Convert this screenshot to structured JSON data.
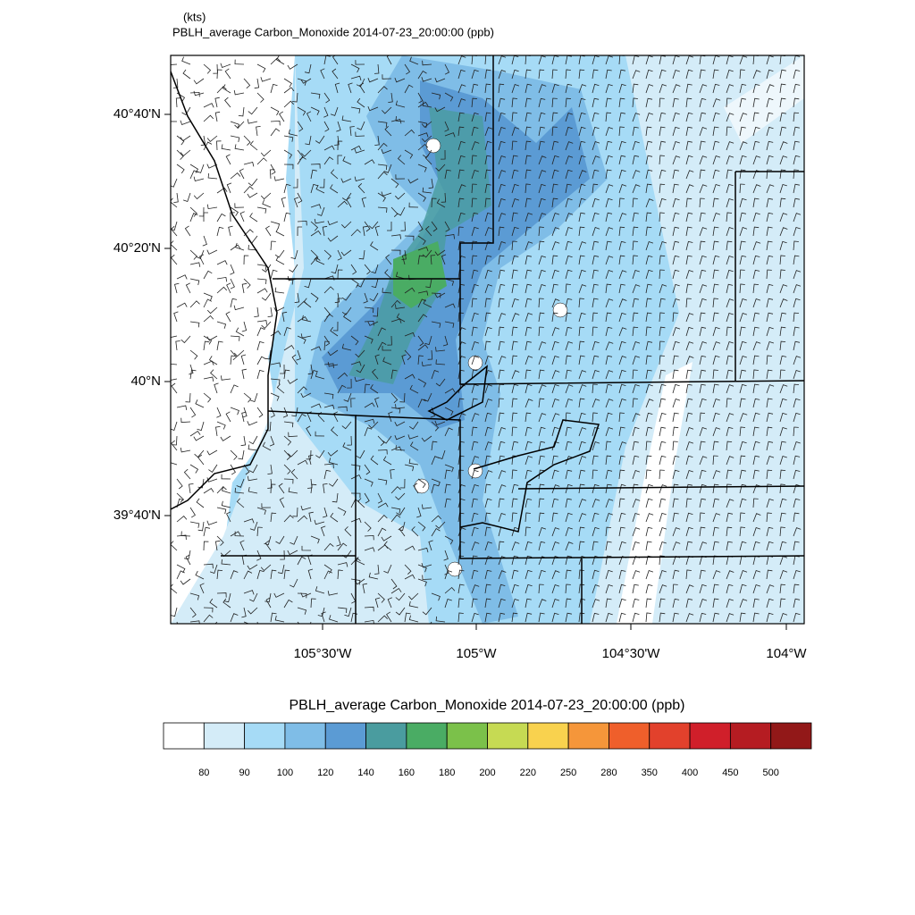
{
  "header": {
    "units": "(kts)",
    "title": "PBLH_average Carbon_Monoxide   2014-07-23_20:00:00   (ppb)"
  },
  "map": {
    "lat_ticks": [
      "40°40'N",
      "40°20'N",
      "40°N",
      "39°40'N"
    ],
    "lon_ticks": [
      "105°30'W",
      "105°W",
      "104°30'W",
      "104°W"
    ]
  },
  "colorbar": {
    "title": "PBLH_average Carbon_Monoxide   2014-07-23_20:00:00  (ppb)",
    "labels": [
      "80",
      "90",
      "100",
      "120",
      "140",
      "160",
      "180",
      "200",
      "220",
      "250",
      "280",
      "350",
      "400",
      "450",
      "500"
    ],
    "colors": [
      "#ffffff",
      "#d4ecf8",
      "#a6dbf6",
      "#7fbde7",
      "#5b9bd4",
      "#4a9c9f",
      "#4aac64",
      "#7bc14a",
      "#c6da53",
      "#f9d24e",
      "#f5963a",
      "#ef5f2b",
      "#e2412c",
      "#d01f2a",
      "#b51c22",
      "#921818"
    ]
  }
}
